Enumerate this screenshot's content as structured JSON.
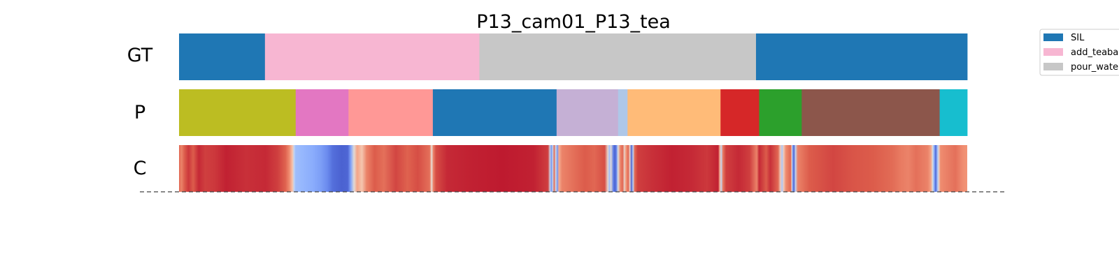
{
  "chart_data": {
    "type": "segmentation-timeline",
    "title": "P13_cam01_P13_tea",
    "total_length": 1000,
    "rows": [
      {
        "label": "GT",
        "segments": [
          {
            "start": 0,
            "end": 109,
            "label": "SIL",
            "color": "#1f77b4"
          },
          {
            "start": 109,
            "end": 381,
            "label": "add_teabag",
            "color": "#f7b6d2"
          },
          {
            "start": 381,
            "end": 732,
            "label": "pour_water",
            "color": "#c7c7c7"
          },
          {
            "start": 732,
            "end": 1000,
            "label": "SIL",
            "color": "#1f77b4"
          }
        ]
      },
      {
        "label": "P",
        "segments": [
          {
            "start": 0,
            "end": 148,
            "color": "#bcbd22"
          },
          {
            "start": 148,
            "end": 215,
            "color": "#e377c2"
          },
          {
            "start": 215,
            "end": 322,
            "color": "#ff9896"
          },
          {
            "start": 322,
            "end": 479,
            "color": "#1f77b4"
          },
          {
            "start": 479,
            "end": 557,
            "color": "#c5b0d5"
          },
          {
            "start": 557,
            "end": 569,
            "color": "#aec7e8"
          },
          {
            "start": 569,
            "end": 687,
            "color": "#ffbb78"
          },
          {
            "start": 687,
            "end": 736,
            "color": "#d62728"
          },
          {
            "start": 736,
            "end": 790,
            "color": "#2ca02c"
          },
          {
            "start": 790,
            "end": 965,
            "color": "#8c564b"
          },
          {
            "start": 965,
            "end": 1000,
            "color": "#17becf"
          }
        ]
      }
    ],
    "confidence": {
      "label": "C",
      "colormap": "coolwarm",
      "range": [
        0,
        1
      ],
      "profile": [
        [
          0,
          0.86
        ],
        [
          3,
          0.8
        ],
        [
          7,
          0.88
        ],
        [
          12,
          0.93
        ],
        [
          18,
          0.88
        ],
        [
          25,
          0.95
        ],
        [
          33,
          0.92
        ],
        [
          45,
          0.93
        ],
        [
          60,
          0.96
        ],
        [
          85,
          0.94
        ],
        [
          110,
          0.95
        ],
        [
          125,
          0.92
        ],
        [
          135,
          0.87
        ],
        [
          140,
          0.78
        ],
        [
          144,
          0.62
        ],
        [
          146,
          0.4
        ],
        [
          148,
          0.3
        ],
        [
          155,
          0.28
        ],
        [
          170,
          0.24
        ],
        [
          180,
          0.2
        ],
        [
          188,
          0.15
        ],
        [
          195,
          0.08
        ],
        [
          206,
          0.05
        ],
        [
          214,
          0.06
        ],
        [
          218,
          0.22
        ],
        [
          222,
          0.52
        ],
        [
          226,
          0.72
        ],
        [
          232,
          0.62
        ],
        [
          238,
          0.8
        ],
        [
          248,
          0.88
        ],
        [
          260,
          0.84
        ],
        [
          275,
          0.91
        ],
        [
          290,
          0.87
        ],
        [
          303,
          0.9
        ],
        [
          318,
          0.84
        ],
        [
          320,
          0.6
        ],
        [
          321,
          0.5
        ],
        [
          322,
          0.78
        ],
        [
          326,
          0.9
        ],
        [
          340,
          0.95
        ],
        [
          370,
          0.96
        ],
        [
          410,
          0.97
        ],
        [
          450,
          0.96
        ],
        [
          468,
          0.92
        ],
        [
          471,
          0.45
        ],
        [
          472,
          0.15
        ],
        [
          474,
          0.4
        ],
        [
          476,
          0.85
        ],
        [
          478,
          0.45
        ],
        [
          480,
          0.18
        ],
        [
          482,
          0.7
        ],
        [
          486,
          0.8
        ],
        [
          500,
          0.84
        ],
        [
          515,
          0.88
        ],
        [
          527,
          0.86
        ],
        [
          540,
          0.9
        ],
        [
          544,
          0.55
        ],
        [
          546,
          0.3
        ],
        [
          548,
          0.52
        ],
        [
          551,
          0.12
        ],
        [
          553,
          0.05
        ],
        [
          555,
          0.15
        ],
        [
          557,
          0.5
        ],
        [
          560,
          0.8
        ],
        [
          563,
          0.86
        ],
        [
          565,
          0.55
        ],
        [
          567,
          0.75
        ],
        [
          570,
          0.86
        ],
        [
          572,
          0.55
        ],
        [
          574,
          0.05
        ],
        [
          576,
          0.4
        ],
        [
          578,
          0.85
        ],
        [
          582,
          0.92
        ],
        [
          600,
          0.94
        ],
        [
          625,
          0.96
        ],
        [
          650,
          0.95
        ],
        [
          670,
          0.93
        ],
        [
          684,
          0.96
        ],
        [
          686,
          0.7
        ],
        [
          688,
          0.42
        ],
        [
          690,
          0.82
        ],
        [
          694,
          0.92
        ],
        [
          710,
          0.95
        ],
        [
          724,
          0.92
        ],
        [
          733,
          0.8
        ],
        [
          736,
          0.95
        ],
        [
          740,
          0.92
        ],
        [
          745,
          0.88
        ],
        [
          750,
          0.94
        ],
        [
          760,
          0.86
        ],
        [
          763,
          0.6
        ],
        [
          765,
          0.34
        ],
        [
          767,
          0.6
        ],
        [
          770,
          0.78
        ],
        [
          776,
          0.86
        ],
        [
          777,
          0.65
        ],
        [
          778,
          0.3
        ],
        [
          780,
          0.05
        ],
        [
          782,
          0.4
        ],
        [
          785,
          0.8
        ],
        [
          800,
          0.88
        ],
        [
          830,
          0.91
        ],
        [
          855,
          0.89
        ],
        [
          880,
          0.88
        ],
        [
          905,
          0.85
        ],
        [
          915,
          0.82
        ],
        [
          925,
          0.8
        ],
        [
          935,
          0.84
        ],
        [
          950,
          0.8
        ],
        [
          954,
          0.72
        ],
        [
          956,
          0.5
        ],
        [
          958,
          0.25
        ],
        [
          960,
          0.06
        ],
        [
          962,
          0.3
        ],
        [
          964,
          0.55
        ],
        [
          966,
          0.78
        ],
        [
          972,
          0.8
        ],
        [
          985,
          0.84
        ],
        [
          994,
          0.78
        ],
        [
          1000,
          0.76
        ]
      ]
    },
    "legend": {
      "placement": "top-right",
      "entries": [
        {
          "label": "SIL",
          "color": "#1f77b4"
        },
        {
          "label": "add_teabag",
          "color": "#f7b6d2"
        },
        {
          "label": "pour_water",
          "color": "#c7c7c7"
        }
      ]
    }
  }
}
